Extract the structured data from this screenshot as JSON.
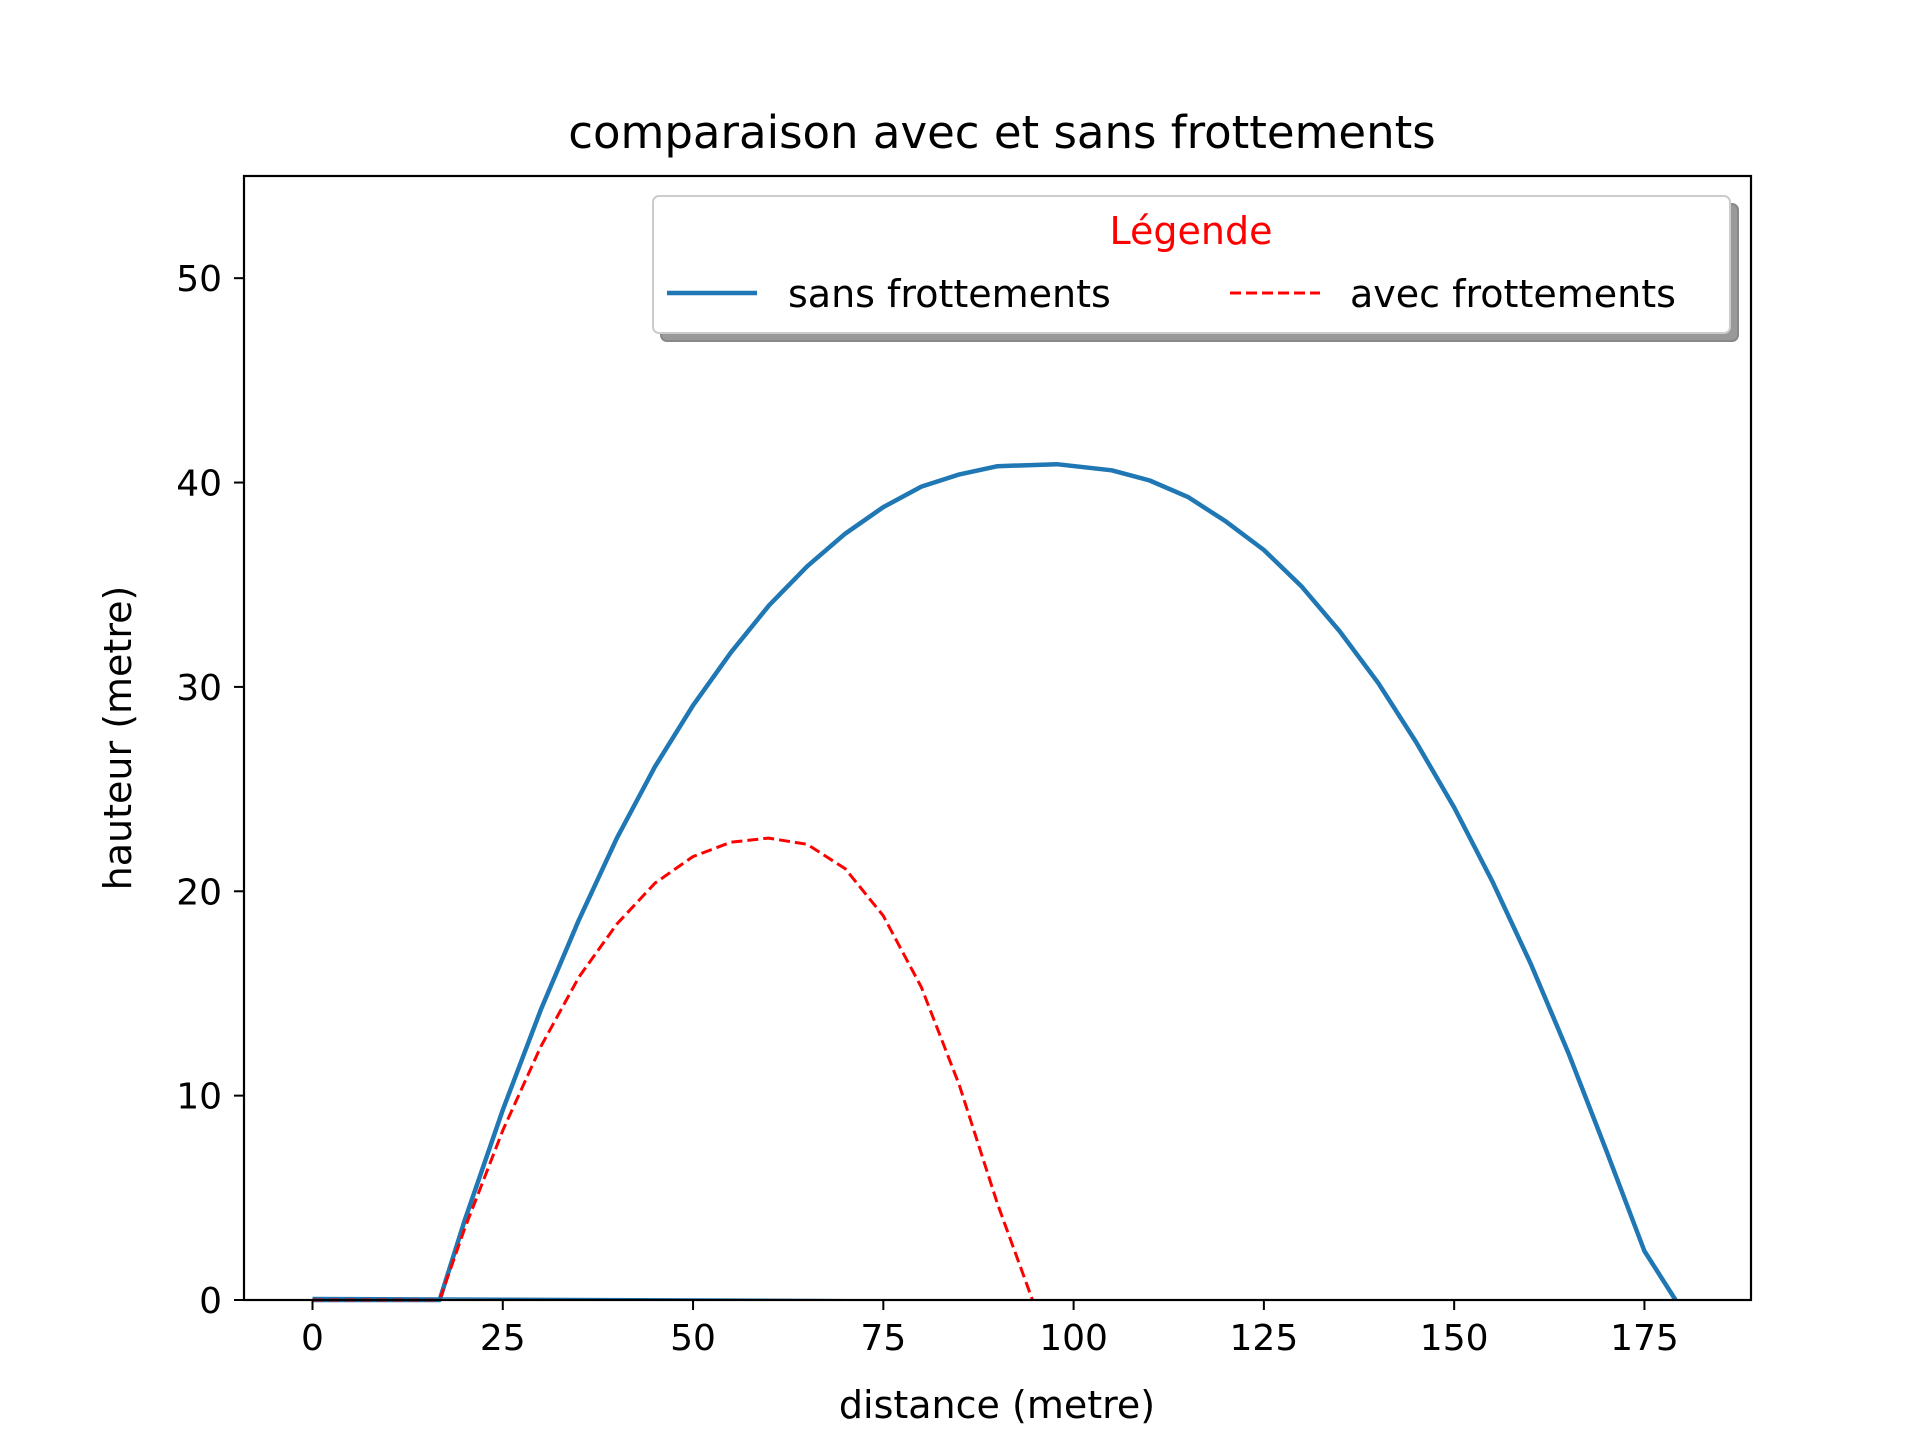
{
  "chart_data": {
    "type": "line",
    "title": "comparaison avec et sans frottements",
    "xlabel": "distance (metre)",
    "ylabel": "hauteur (metre)",
    "xlim": [
      -9,
      189
    ],
    "ylim": [
      0,
      55
    ],
    "xticks": [
      0,
      25,
      50,
      75,
      100,
      125,
      150,
      175
    ],
    "yticks": [
      0,
      10,
      20,
      30,
      40,
      50
    ],
    "grid": false,
    "legend": {
      "title": "Légende",
      "title_color": "#ff0000",
      "placement": "upper right",
      "columns": 2,
      "shadow": true
    },
    "series": [
      {
        "name": "sans frottements",
        "color": "#1f77b4",
        "style": "solid",
        "points": [
          [
            0,
            0
          ],
          [
            16.7,
            0
          ],
          [
            20,
            3.9
          ],
          [
            25,
            9.3
          ],
          [
            30,
            14.2
          ],
          [
            35,
            18.6
          ],
          [
            40,
            22.6
          ],
          [
            45,
            26.1
          ],
          [
            50,
            29.1
          ],
          [
            55,
            31.7
          ],
          [
            60,
            34.0
          ],
          [
            65,
            35.9
          ],
          [
            70,
            37.5
          ],
          [
            75,
            38.8
          ],
          [
            80,
            39.8
          ],
          [
            85,
            40.4
          ],
          [
            90,
            40.8
          ],
          [
            97.8,
            40.9
          ],
          [
            105,
            40.6
          ],
          [
            110,
            40.1
          ],
          [
            115,
            39.3
          ],
          [
            120,
            38.1
          ],
          [
            125,
            36.7
          ],
          [
            130,
            34.9
          ],
          [
            135,
            32.7
          ],
          [
            140,
            30.2
          ],
          [
            145,
            27.3
          ],
          [
            150,
            24.1
          ],
          [
            155,
            20.5
          ],
          [
            160,
            16.5
          ],
          [
            165,
            12.1
          ],
          [
            170,
            7.3
          ],
          [
            175,
            2.4
          ],
          [
            179.1,
            0
          ]
        ]
      },
      {
        "name": "avec frottements",
        "color": "#ff0000",
        "style": "dashed",
        "points": [
          [
            0,
            0
          ],
          [
            16.7,
            0
          ],
          [
            20,
            3.5
          ],
          [
            25,
            8.3
          ],
          [
            30,
            12.4
          ],
          [
            35,
            15.8
          ],
          [
            40,
            18.4
          ],
          [
            45,
            20.4
          ],
          [
            50,
            21.7
          ],
          [
            55,
            22.4
          ],
          [
            59.9,
            22.6
          ],
          [
            65,
            22.3
          ],
          [
            70,
            21.1
          ],
          [
            75,
            18.8
          ],
          [
            80,
            15.3
          ],
          [
            85,
            10.5
          ],
          [
            90,
            4.7
          ],
          [
            94.6,
            0
          ]
        ]
      },
      {
        "name": "",
        "color": "#1f77b4",
        "style": "thin",
        "points": [
          [
            0,
            0.12
          ],
          [
            25,
            0.09
          ],
          [
            50,
            0.05
          ],
          [
            68,
            0.02
          ],
          [
            75,
            0.0
          ]
        ]
      }
    ]
  }
}
